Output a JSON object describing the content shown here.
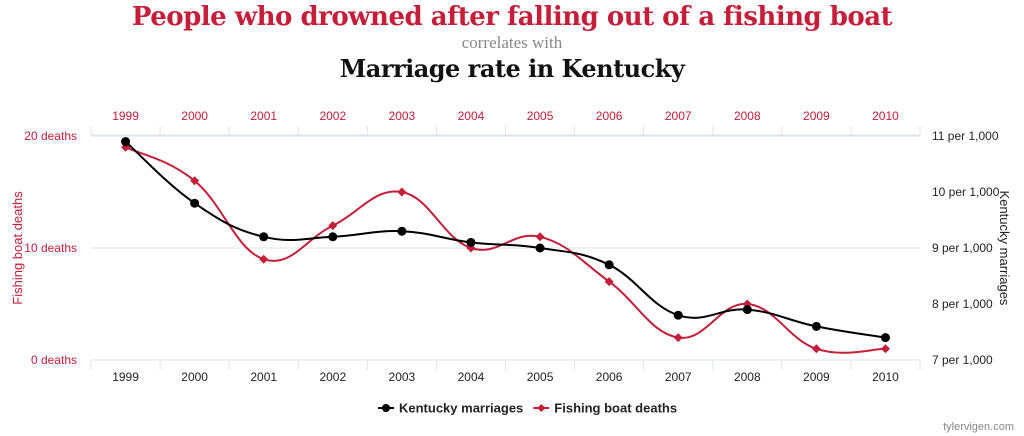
{
  "title": "People who drowned after falling out of a fishing boat",
  "connector": "correlates with",
  "subtitle": "Marriage rate in Kentucky",
  "credit": "tylervigen.com",
  "colors": {
    "fishing": "#c41e3a",
    "kentucky": "#000000",
    "grid": "#dde3ec"
  },
  "chart_data": {
    "type": "line",
    "x": [
      "1999",
      "2000",
      "2001",
      "2002",
      "2003",
      "2004",
      "2005",
      "2006",
      "2007",
      "2008",
      "2009",
      "2010"
    ],
    "y_left": {
      "label": "Fishing boat deaths",
      "ylim": [
        0,
        20
      ],
      "ticks": [
        0,
        10,
        20
      ],
      "tick_labels": [
        "0 deaths",
        "10 deaths",
        "20 deaths"
      ]
    },
    "y_right": {
      "label": "Kentucky marriages",
      "ylim": [
        7,
        11
      ],
      "ticks": [
        7,
        8,
        9,
        10,
        11
      ],
      "tick_labels": [
        "7 per 1,000",
        "8 per 1,000",
        "9 per 1,000",
        "10 per 1,000",
        "11 per 1,000"
      ]
    },
    "series": [
      {
        "name": "Kentucky marriages",
        "axis": "right",
        "marker": "circle",
        "color": "#000000",
        "values": [
          10.9,
          9.8,
          9.2,
          9.2,
          9.3,
          9.1,
          9.0,
          8.7,
          7.8,
          7.9,
          7.6,
          7.4
        ]
      },
      {
        "name": "Fishing boat deaths",
        "axis": "left",
        "marker": "diamond",
        "color": "#c41e3a",
        "values": [
          19,
          16,
          9,
          12,
          15,
          10,
          11,
          7,
          2,
          5,
          1,
          1
        ]
      }
    ],
    "legend_position": "bottom-center",
    "grid": true
  }
}
